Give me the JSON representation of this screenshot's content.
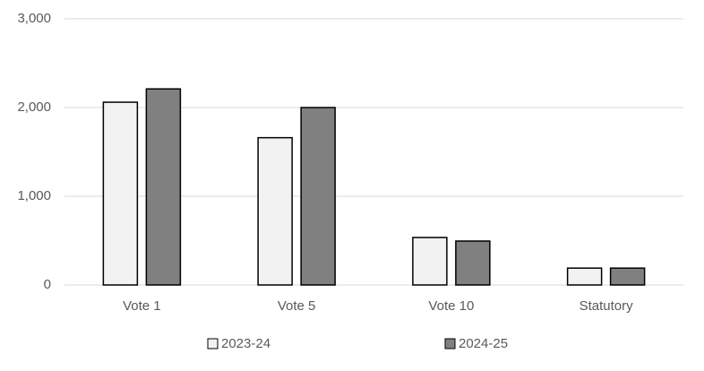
{
  "chart_data": {
    "type": "bar",
    "categories": [
      "Vote 1",
      "Vote 5",
      "Vote 10",
      "Statutory"
    ],
    "series": [
      {
        "name": "2023-24",
        "color": "#f2f2f2",
        "values": [
          2060,
          1660,
          535,
          190
        ]
      },
      {
        "name": "2024-25",
        "color": "#808080",
        "values": [
          2210,
          2000,
          495,
          190
        ]
      }
    ],
    "ylim": [
      0,
      3000
    ],
    "yticks": [
      0,
      {
        "value": 1000,
        "label": "1,000"
      },
      {
        "value": 2000,
        "label": "2,000"
      },
      {
        "value": 3000,
        "label": "3,000"
      }
    ],
    "grid": true,
    "legend": "bottom"
  }
}
